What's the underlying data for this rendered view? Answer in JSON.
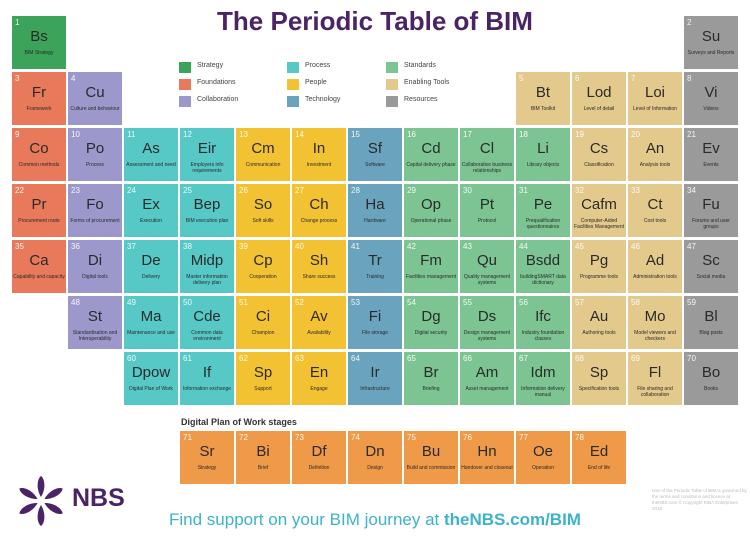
{
  "title": "The Periodic Table of BIM",
  "colors": {
    "strategy": "#3ba35a",
    "foundations": "#e8795a",
    "collaboration": "#9c98cc",
    "process": "#56c8c6",
    "people": "#f2c232",
    "technology": "#6aa3bd",
    "standards": "#7cc593",
    "enabling": "#e3c98c",
    "resources": "#9a9a9a",
    "dpw": "#ef9a48"
  },
  "legend": [
    {
      "label": "Strategy",
      "cat": "strategy"
    },
    {
      "label": "Foundations",
      "cat": "foundations"
    },
    {
      "label": "Collaboration",
      "cat": "collaboration"
    },
    {
      "label": "Process",
      "cat": "process"
    },
    {
      "label": "People",
      "cat": "people"
    },
    {
      "label": "Technology",
      "cat": "technology"
    },
    {
      "label": "Standards",
      "cat": "standards"
    },
    {
      "label": "Enabling Tools",
      "cat": "enabling"
    },
    {
      "label": "Resources",
      "cat": "resources"
    }
  ],
  "elements": [
    {
      "n": "1",
      "s": "Bs",
      "name": "BIM Strategy",
      "cat": "strategy"
    },
    {
      "n": "2",
      "s": "Su",
      "name": "Surveys and Reports",
      "cat": "resources"
    },
    {
      "n": "3",
      "s": "Fr",
      "name": "Framework",
      "cat": "foundations"
    },
    {
      "n": "4",
      "s": "Cu",
      "name": "Culture and behaviour",
      "cat": "collaboration"
    },
    {
      "n": "5",
      "s": "Bt",
      "name": "BIM Toolkit",
      "cat": "enabling"
    },
    {
      "n": "6",
      "s": "Lod",
      "name": "Level of detail",
      "cat": "enabling"
    },
    {
      "n": "7",
      "s": "Loi",
      "name": "Level of Information",
      "cat": "enabling"
    },
    {
      "n": "8",
      "s": "Vi",
      "name": "Videos",
      "cat": "resources"
    },
    {
      "n": "9",
      "s": "Co",
      "name": "Common methods",
      "cat": "foundations"
    },
    {
      "n": "10",
      "s": "Po",
      "name": "Process",
      "cat": "collaboration"
    },
    {
      "n": "11",
      "s": "As",
      "name": "Assessment and need",
      "cat": "process"
    },
    {
      "n": "12",
      "s": "Eir",
      "name": "Employers info requirements",
      "cat": "process"
    },
    {
      "n": "13",
      "s": "Cm",
      "name": "Communication",
      "cat": "people"
    },
    {
      "n": "14",
      "s": "In",
      "name": "Investment",
      "cat": "people"
    },
    {
      "n": "15",
      "s": "Sf",
      "name": "Software",
      "cat": "technology"
    },
    {
      "n": "16",
      "s": "Cd",
      "name": "Capital delivery phase",
      "cat": "standards"
    },
    {
      "n": "17",
      "s": "Cl",
      "name": "Collaborative business relationships",
      "cat": "standards"
    },
    {
      "n": "18",
      "s": "Li",
      "name": "Library objects",
      "cat": "standards"
    },
    {
      "n": "19",
      "s": "Cs",
      "name": "Classification",
      "cat": "enabling"
    },
    {
      "n": "20",
      "s": "An",
      "name": "Analysis tools",
      "cat": "enabling"
    },
    {
      "n": "21",
      "s": "Ev",
      "name": "Events",
      "cat": "resources"
    },
    {
      "n": "22",
      "s": "Pr",
      "name": "Procurement route",
      "cat": "foundations"
    },
    {
      "n": "23",
      "s": "Fo",
      "name": "Forms of procurement",
      "cat": "collaboration"
    },
    {
      "n": "24",
      "s": "Ex",
      "name": "Execution",
      "cat": "process"
    },
    {
      "n": "25",
      "s": "Bep",
      "name": "BIM execution plan",
      "cat": "process"
    },
    {
      "n": "26",
      "s": "So",
      "name": "Soft skills",
      "cat": "people"
    },
    {
      "n": "27",
      "s": "Ch",
      "name": "Change process",
      "cat": "people"
    },
    {
      "n": "28",
      "s": "Ha",
      "name": "Hardware",
      "cat": "technology"
    },
    {
      "n": "29",
      "s": "Op",
      "name": "Operational phase",
      "cat": "standards"
    },
    {
      "n": "30",
      "s": "Pt",
      "name": "Protocol",
      "cat": "standards"
    },
    {
      "n": "31",
      "s": "Pe",
      "name": "Prequalification questionnaires",
      "cat": "standards"
    },
    {
      "n": "32",
      "s": "Cafm",
      "name": "Computer-Aided Facilities Management",
      "cat": "enabling"
    },
    {
      "n": "33",
      "s": "Ct",
      "name": "Cost tools",
      "cat": "enabling"
    },
    {
      "n": "34",
      "s": "Fu",
      "name": "Forums and user groups",
      "cat": "resources"
    },
    {
      "n": "35",
      "s": "Ca",
      "name": "Capability and capacity",
      "cat": "foundations"
    },
    {
      "n": "36",
      "s": "Di",
      "name": "Digital tools",
      "cat": "collaboration"
    },
    {
      "n": "37",
      "s": "De",
      "name": "Delivery",
      "cat": "process"
    },
    {
      "n": "38",
      "s": "Midp",
      "name": "Master information delivery plan",
      "cat": "process"
    },
    {
      "n": "39",
      "s": "Cp",
      "name": "Cooperation",
      "cat": "people"
    },
    {
      "n": "40",
      "s": "Sh",
      "name": "Share success",
      "cat": "people"
    },
    {
      "n": "41",
      "s": "Tr",
      "name": "Training",
      "cat": "technology"
    },
    {
      "n": "42",
      "s": "Fm",
      "name": "Facilities management",
      "cat": "standards"
    },
    {
      "n": "43",
      "s": "Qu",
      "name": "Quality management systems",
      "cat": "standards"
    },
    {
      "n": "44",
      "s": "Bsdd",
      "name": "buildingSMART data dictionary",
      "cat": "standards"
    },
    {
      "n": "45",
      "s": "Pg",
      "name": "Programme tools",
      "cat": "enabling"
    },
    {
      "n": "46",
      "s": "Ad",
      "name": "Administration tools",
      "cat": "enabling"
    },
    {
      "n": "47",
      "s": "Sc",
      "name": "Social media",
      "cat": "resources"
    },
    {
      "n": "48",
      "s": "St",
      "name": "Standardisation and Interoperability",
      "cat": "collaboration"
    },
    {
      "n": "49",
      "s": "Ma",
      "name": "Maintenance and use",
      "cat": "process"
    },
    {
      "n": "50",
      "s": "Cde",
      "name": "Common data environment",
      "cat": "process"
    },
    {
      "n": "51",
      "s": "Ci",
      "name": "Champion",
      "cat": "people"
    },
    {
      "n": "52",
      "s": "Av",
      "name": "Availability",
      "cat": "people"
    },
    {
      "n": "53",
      "s": "Fi",
      "name": "File storage",
      "cat": "technology"
    },
    {
      "n": "54",
      "s": "Dg",
      "name": "Digital security",
      "cat": "standards"
    },
    {
      "n": "55",
      "s": "Ds",
      "name": "Design management systems",
      "cat": "standards"
    },
    {
      "n": "56",
      "s": "Ifc",
      "name": "Industry foundation classes",
      "cat": "standards"
    },
    {
      "n": "57",
      "s": "Au",
      "name": "Authoring tools",
      "cat": "enabling"
    },
    {
      "n": "58",
      "s": "Mo",
      "name": "Model viewers and checkers",
      "cat": "enabling"
    },
    {
      "n": "59",
      "s": "Bl",
      "name": "Blog posts",
      "cat": "resources"
    },
    {
      "n": "60",
      "s": "Dpow",
      "name": "Digital Plan of Work",
      "cat": "process"
    },
    {
      "n": "61",
      "s": "If",
      "name": "Information exchange",
      "cat": "process"
    },
    {
      "n": "62",
      "s": "Sp",
      "name": "Support",
      "cat": "people"
    },
    {
      "n": "63",
      "s": "En",
      "name": "Engage",
      "cat": "people"
    },
    {
      "n": "64",
      "s": "Ir",
      "name": "Infrastructure",
      "cat": "technology"
    },
    {
      "n": "65",
      "s": "Br",
      "name": "Briefing",
      "cat": "standards"
    },
    {
      "n": "66",
      "s": "Am",
      "name": "Asset management",
      "cat": "standards"
    },
    {
      "n": "67",
      "s": "Idm",
      "name": "Information delivery manual",
      "cat": "standards"
    },
    {
      "n": "68",
      "s": "Sp",
      "name": "Specification tools",
      "cat": "enabling"
    },
    {
      "n": "69",
      "s": "Fl",
      "name": "File sharing and collaboration",
      "cat": "enabling"
    },
    {
      "n": "70",
      "s": "Bo",
      "name": "Books",
      "cat": "resources"
    }
  ],
  "dpw_heading": "Digital Plan of Work stages",
  "dpw": [
    {
      "n": "71",
      "s": "Sr",
      "name": "Strategy",
      "cat": "dpw"
    },
    {
      "n": "72",
      "s": "Bi",
      "name": "Brief",
      "cat": "dpw"
    },
    {
      "n": "73",
      "s": "Df",
      "name": "Definition",
      "cat": "dpw"
    },
    {
      "n": "74",
      "s": "Dn",
      "name": "Design",
      "cat": "dpw"
    },
    {
      "n": "75",
      "s": "Bu",
      "name": "Build and commission",
      "cat": "dpw"
    },
    {
      "n": "76",
      "s": "Hn",
      "name": "Handover and closeout",
      "cat": "dpw"
    },
    {
      "n": "77",
      "s": "Oe",
      "name": "Operation",
      "cat": "dpw"
    },
    {
      "n": "78",
      "s": "Ed",
      "name": "End of life",
      "cat": "dpw"
    }
  ],
  "brand": "NBS",
  "footer": {
    "prefix": "Find support on your BIM journey at ",
    "link": "theNBS.com/BIM"
  },
  "copyright": "Use of the Periodic Table of BIM is governed by the terms and conditions and licence at theNBS.com © Copyright RIBA Enterprises 2015"
}
